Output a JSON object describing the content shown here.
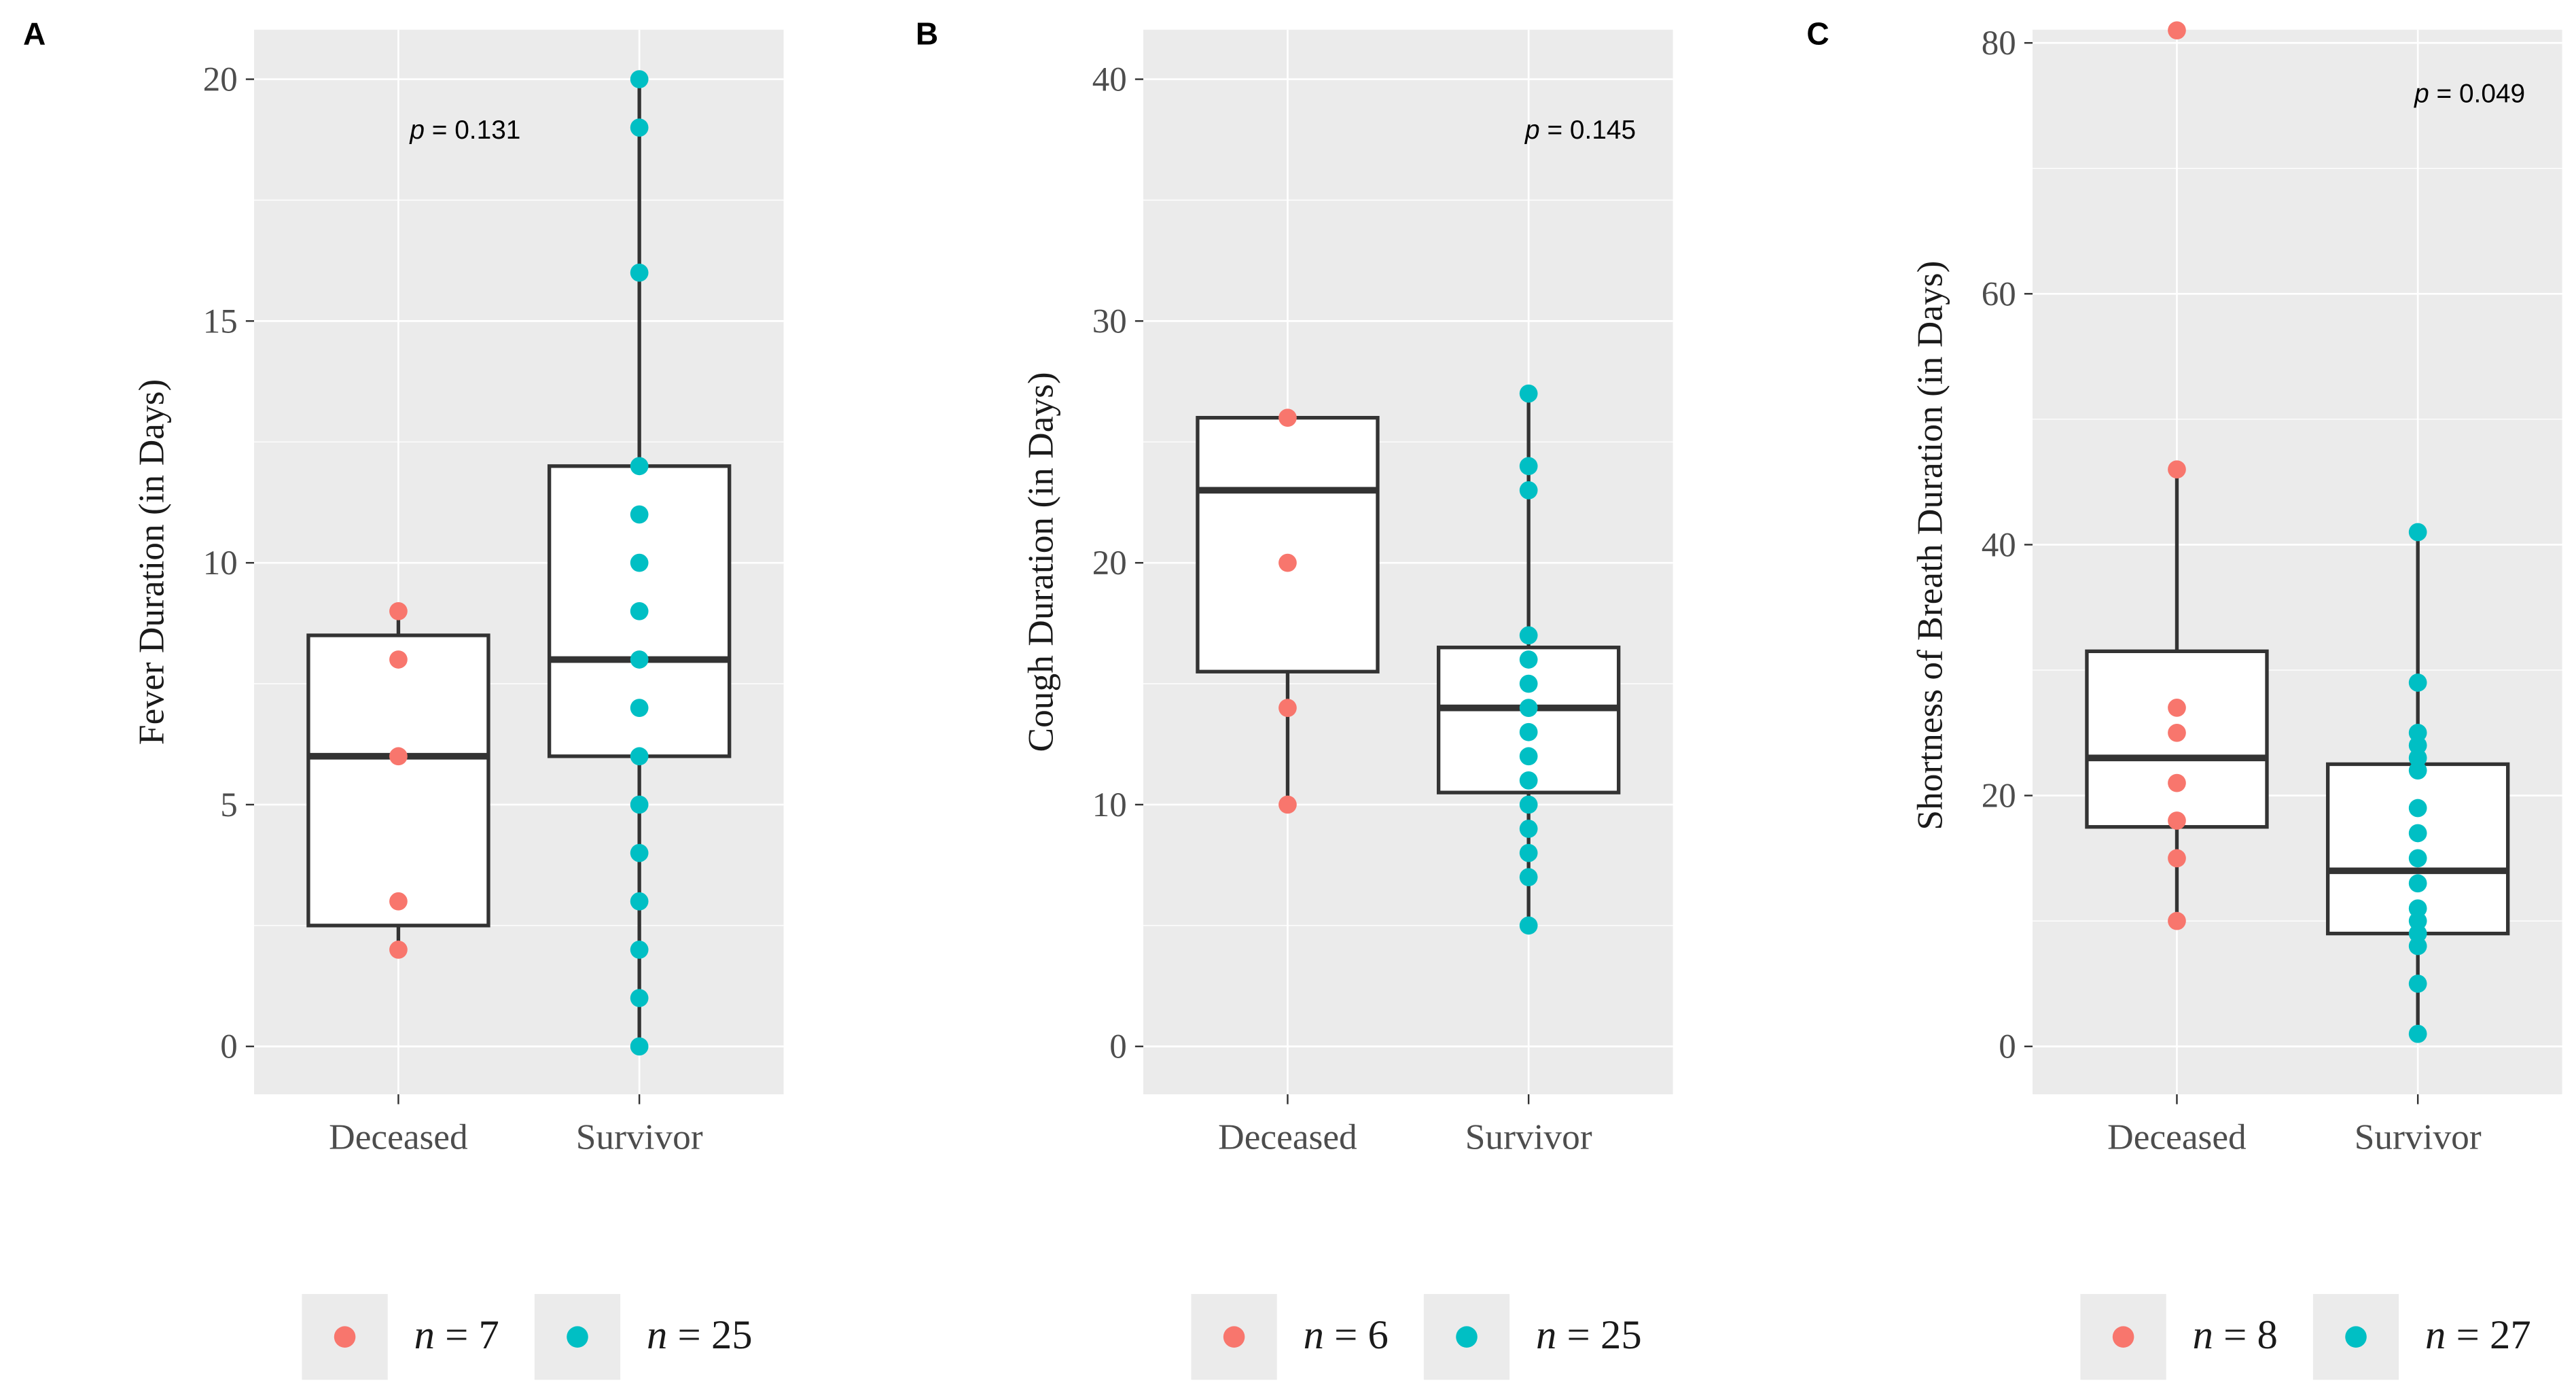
{
  "colors": {
    "deceased": "#F8766D",
    "survivor": "#00BFC4",
    "panel_bg": "#EBEBEB",
    "grid": "#FFFFFF",
    "box": "#333333"
  },
  "chart_data": [
    {
      "type": "boxplot",
      "panel_label": "A",
      "ylabel": "Fever Duration (in Days)",
      "xlabel": "",
      "categories": [
        "Deceased",
        "Survivor"
      ],
      "ylim": [
        -1,
        20
      ],
      "yticks": [
        0,
        5,
        10,
        15,
        20
      ],
      "p_prefix": "p",
      "p_text": " = 0.131",
      "boxes": [
        {
          "name": "Deceased",
          "whisker_low": 2,
          "q1": 2.5,
          "median": 6,
          "q3": 8.5,
          "whisker_high": 9
        },
        {
          "name": "Survivor",
          "whisker_low": 0,
          "q1": 6,
          "median": 8,
          "q3": 12,
          "whisker_high": 20
        }
      ],
      "series": [
        {
          "name": "Deceased",
          "values": [
            2,
            3,
            6,
            8,
            9
          ]
        },
        {
          "name": "Survivor",
          "values": [
            0,
            1,
            2,
            3,
            4,
            5,
            6,
            7,
            8,
            9,
            10,
            11,
            12,
            16,
            19,
            20
          ]
        }
      ],
      "legend": [
        {
          "series": "Deceased",
          "n": "n",
          "text": " = 7"
        },
        {
          "series": "Survivor",
          "n": "n",
          "text": " = 25"
        }
      ]
    },
    {
      "type": "boxplot",
      "panel_label": "B",
      "ylabel": "Cough Duration (in Days)",
      "xlabel": "",
      "categories": [
        "Deceased",
        "Survivor"
      ],
      "ylim": [
        -2,
        42
      ],
      "yticks": [
        0,
        10,
        20,
        30,
        40
      ],
      "p_prefix": "p",
      "p_text": " = 0.145",
      "boxes": [
        {
          "name": "Deceased",
          "whisker_low": 10,
          "q1": 15.5,
          "median": 23,
          "q3": 26,
          "whisker_high": 26
        },
        {
          "name": "Survivor",
          "whisker_low": 5,
          "q1": 10.5,
          "median": 14,
          "q3": 16.5,
          "whisker_high": 27
        }
      ],
      "series": [
        {
          "name": "Deceased",
          "values": [
            10,
            14,
            20,
            26
          ]
        },
        {
          "name": "Survivor",
          "values": [
            5,
            7,
            8,
            9,
            10,
            11,
            12,
            13,
            14,
            15,
            16,
            17,
            23,
            24,
            27
          ]
        }
      ],
      "legend": [
        {
          "series": "Deceased",
          "n": "n",
          "text": " = 6"
        },
        {
          "series": "Survivor",
          "n": "n",
          "text": " = 25"
        }
      ]
    },
    {
      "type": "boxplot",
      "panel_label": "C",
      "ylabel": "Shortness of Breath Duration (in Days)",
      "xlabel": "",
      "categories": [
        "Deceased",
        "Survivor"
      ],
      "ylim": [
        -4,
        81
      ],
      "yticks": [
        0,
        20,
        40,
        60,
        80
      ],
      "p_prefix": "p",
      "p_text": " = 0.049",
      "boxes": [
        {
          "name": "Deceased",
          "whisker_low": 10,
          "q1": 17.5,
          "median": 23,
          "q3": 31.5,
          "whisker_high": 46
        },
        {
          "name": "Survivor",
          "whisker_low": 1,
          "q1": 9,
          "median": 14,
          "q3": 22.5,
          "whisker_high": 41
        }
      ],
      "series": [
        {
          "name": "Deceased",
          "values": [
            10,
            15,
            18,
            21,
            25,
            27,
            46,
            81
          ]
        },
        {
          "name": "Survivor",
          "values": [
            1,
            5,
            8,
            9,
            10,
            11,
            13,
            15,
            17,
            19,
            22,
            23,
            24,
            25,
            29,
            41
          ]
        }
      ],
      "legend": [
        {
          "series": "Deceased",
          "n": "n",
          "text": " = 8"
        },
        {
          "series": "Survivor",
          "n": "n",
          "text": " = 27"
        }
      ]
    }
  ]
}
